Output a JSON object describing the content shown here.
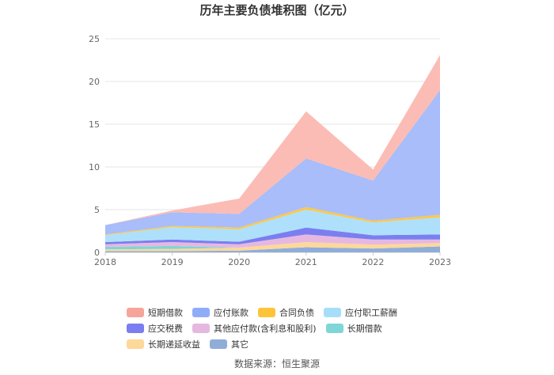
{
  "chart_data": {
    "type": "area",
    "stacked": true,
    "title": "历年主要负债堆积图（亿元）",
    "x": [
      "2018",
      "2019",
      "2020",
      "2021",
      "2022",
      "2023"
    ],
    "ylim": [
      0,
      25
    ],
    "yticks": [
      0,
      5,
      10,
      15,
      20,
      25
    ],
    "grid": true,
    "legend_position": "bottom",
    "series": [
      {
        "name": "其它",
        "color": "#8fadd8",
        "values": [
          0.15,
          0.15,
          0.2,
          0.6,
          0.45,
          0.7
        ]
      },
      {
        "name": "长期递延收益",
        "color": "#fdd89a",
        "values": [
          0.2,
          0.25,
          0.35,
          0.6,
          0.45,
          0.4
        ]
      },
      {
        "name": "长期借款",
        "color": "#7fd6d6",
        "values": [
          0.3,
          0.35,
          0.0,
          0.0,
          0.0,
          0.0
        ]
      },
      {
        "name": "其他应付款(含利息和股利)",
        "color": "#e6b8e0",
        "values": [
          0.3,
          0.45,
          0.4,
          0.9,
          0.6,
          0.4
        ]
      },
      {
        "name": "应交税费",
        "color": "#7b7ef0",
        "values": [
          0.25,
          0.3,
          0.3,
          0.8,
          0.5,
          0.6
        ]
      },
      {
        "name": "应付职工薪酬",
        "color": "#aee0fb",
        "values": [
          0.8,
          1.45,
          1.45,
          2.1,
          1.5,
          2.0
        ]
      },
      {
        "name": "合同负债",
        "color": "#fdc84a",
        "values": [
          0.1,
          0.15,
          0.2,
          0.3,
          0.2,
          0.3
        ]
      },
      {
        "name": "应付账款",
        "color": "#a8bdf9",
        "values": [
          1.1,
          1.6,
          1.6,
          5.7,
          4.7,
          14.6
        ]
      },
      {
        "name": "短期借款",
        "color": "#fbbcb5",
        "values": [
          0.0,
          0.2,
          1.8,
          5.5,
          1.3,
          4.1
        ]
      }
    ],
    "legend_order": [
      "短期借款",
      "应付账款",
      "合同负债",
      "应付职工薪酬",
      "应交税费",
      "其他应付款(含利息和股利)",
      "长期借款",
      "长期递延收益",
      "其它"
    ],
    "legend_colors": {
      "短期借款": "#f7a49a",
      "应付账款": "#8fadf7",
      "合同负债": "#fdc43a",
      "应付职工薪酬": "#a6defa",
      "应交税费": "#7b7ef0",
      "其他应付款(含利息和股利)": "#e6b8e0",
      "长期借款": "#7fd6d6",
      "长期递延收益": "#fdd89a",
      "其它": "#8fadd8"
    }
  },
  "source": "数据来源：恒生聚源"
}
